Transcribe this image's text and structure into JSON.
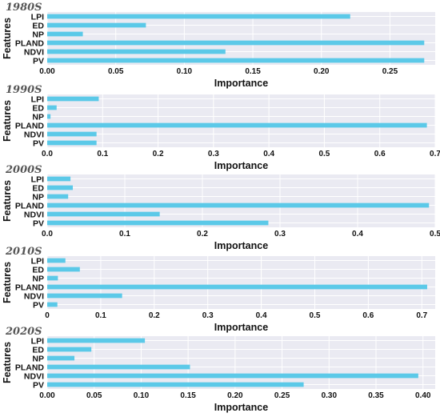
{
  "colors": {
    "bar": "#5bc9e8",
    "plot_bg": "#eaeaf2",
    "grid": "#ffffff"
  },
  "chart_data": [
    {
      "type": "bar",
      "orientation": "horizontal",
      "title": "1980S",
      "xlabel": "Importance",
      "ylabel": "Features",
      "grid": true,
      "categories": [
        "LPI",
        "ED",
        "NP",
        "PLAND",
        "NDVI",
        "PV"
      ],
      "values": [
        0.221,
        0.072,
        0.026,
        0.275,
        0.13,
        0.275
      ],
      "xlim": [
        0,
        0.283
      ],
      "xticks": [
        0.0,
        0.05,
        0.1,
        0.15,
        0.2,
        0.25
      ],
      "xtick_labels": [
        "0.00",
        "0.05",
        "0.10",
        "0.15",
        "0.20",
        "0.25"
      ]
    },
    {
      "type": "bar",
      "orientation": "horizontal",
      "title": "1990S",
      "xlabel": "Importance",
      "ylabel": "Features",
      "grid": true,
      "categories": [
        "LPI",
        "ED",
        "NP",
        "PLAND",
        "NDVI",
        "PV"
      ],
      "values": [
        0.093,
        0.017,
        0.006,
        0.685,
        0.089,
        0.089
      ],
      "xlim": [
        0,
        0.7
      ],
      "xticks": [
        0,
        0.1,
        0.2,
        0.3,
        0.4,
        0.5,
        0.6,
        0.7
      ],
      "xtick_labels": [
        "0.0",
        "0.1",
        "0.2",
        "0.3",
        "0.4",
        "0.5",
        "0.6",
        "0.7"
      ]
    },
    {
      "type": "bar",
      "orientation": "horizontal",
      "title": "2000S",
      "xlabel": "Importance",
      "ylabel": "Features",
      "grid": true,
      "categories": [
        "LPI",
        "ED",
        "NP",
        "PLAND",
        "NDVI",
        "PV"
      ],
      "values": [
        0.03,
        0.033,
        0.027,
        0.492,
        0.145,
        0.285
      ],
      "xlim": [
        0,
        0.5
      ],
      "xticks": [
        0,
        0.1,
        0.2,
        0.3,
        0.4,
        0.5
      ],
      "xtick_labels": [
        "0.0",
        "0.1",
        "0.2",
        "0.3",
        "0.4",
        "0.5"
      ]
    },
    {
      "type": "bar",
      "orientation": "horizontal",
      "title": "2010S",
      "xlabel": "Importance",
      "ylabel": "Features",
      "grid": true,
      "categories": [
        "LPI",
        "ED",
        "NP",
        "PLAND",
        "NDVI",
        "PV"
      ],
      "values": [
        0.034,
        0.061,
        0.02,
        0.71,
        0.14,
        0.019
      ],
      "xlim": [
        0,
        0.725
      ],
      "xticks": [
        0,
        0.1,
        0.2,
        0.3,
        0.4,
        0.5,
        0.6,
        0.7
      ],
      "xtick_labels": [
        "0",
        "0.1",
        "0.2",
        "0.3",
        "0.4",
        "0.5",
        "0.6",
        "0.7"
      ]
    },
    {
      "type": "bar",
      "orientation": "horizontal",
      "title": "2020S",
      "xlabel": "Importance",
      "ylabel": "Features",
      "grid": true,
      "categories": [
        "LPI",
        "ED",
        "NP",
        "PLAND",
        "NDVI",
        "PV"
      ],
      "values": [
        0.104,
        0.047,
        0.029,
        0.152,
        0.395,
        0.273
      ],
      "xlim": [
        0,
        0.413
      ],
      "xticks": [
        0.0,
        0.05,
        0.1,
        0.15,
        0.2,
        0.25,
        0.3,
        0.35,
        0.4
      ],
      "xtick_labels": [
        "0.00",
        "0.05",
        "0.10",
        "0.15",
        "0.20",
        "0.25",
        "0.30",
        "0.35",
        "0.40"
      ]
    }
  ]
}
